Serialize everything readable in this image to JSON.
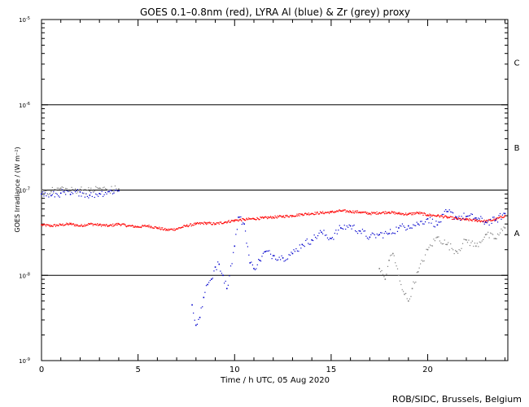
{
  "chart_data": {
    "type": "scatter",
    "title": "GOES 0.1–0.8nm (red), LYRA Al (blue) & Zr (grey) proxy",
    "xlabel": "Time / h UTC, 05 Aug 2020",
    "ylabel": "GOES Irradiance / (W m⁻²)",
    "xlim": [
      0,
      24.15
    ],
    "ylim": [
      1e-09,
      1e-05
    ],
    "yscale": "log",
    "x_ticks": [
      0,
      5,
      10,
      15,
      20
    ],
    "x_tick_labels": [
      "0",
      "5",
      "10",
      "15",
      "20"
    ],
    "y_ticks": [
      {
        "base": "10",
        "exp": "-9"
      },
      {
        "base": "10",
        "exp": "-8"
      },
      {
        "base": "10",
        "exp": "-7"
      },
      {
        "base": "10",
        "exp": "-6"
      },
      {
        "base": "10",
        "exp": "-5"
      }
    ],
    "flare_class_lines": [
      1e-08,
      1e-07,
      1e-06
    ],
    "flare_classes": [
      {
        "label": "A",
        "value": 3.16e-08
      },
      {
        "label": "B",
        "value": 3.16e-07
      },
      {
        "label": "C",
        "value": 3.16e-06
      }
    ],
    "series": [
      {
        "name": "GOES 0.1–0.8nm",
        "color": "#ff0000",
        "x": [
          0,
          0.5,
          1,
          1.5,
          2,
          2.5,
          3,
          3.5,
          4,
          4.5,
          5,
          5.5,
          6,
          6.5,
          7,
          7.5,
          8,
          8.5,
          9,
          9.5,
          10,
          10.5,
          11,
          11.5,
          12,
          12.5,
          13,
          13.5,
          14,
          14.5,
          15,
          15.5,
          16,
          16.5,
          17,
          17.5,
          18,
          18.5,
          19,
          19.5,
          20,
          20.5,
          21,
          21.5,
          22,
          22.5,
          23,
          23.5,
          24
        ],
        "y": [
          3.9e-08,
          3.8e-08,
          3.9e-08,
          4e-08,
          3.8e-08,
          4e-08,
          3.9e-08,
          3.8e-08,
          4e-08,
          3.8e-08,
          3.7e-08,
          3.8e-08,
          3.6e-08,
          3.4e-08,
          3.5e-08,
          3.8e-08,
          4e-08,
          4.1e-08,
          4e-08,
          4.2e-08,
          4.4e-08,
          4.5e-08,
          4.6e-08,
          4.7e-08,
          4.8e-08,
          4.9e-08,
          5e-08,
          5.2e-08,
          5.3e-08,
          5.4e-08,
          5.5e-08,
          5.7e-08,
          5.6e-08,
          5.5e-08,
          5.3e-08,
          5.4e-08,
          5.5e-08,
          5.3e-08,
          5.2e-08,
          5.4e-08,
          5.1e-08,
          5e-08,
          4.8e-08,
          4.6e-08,
          4.5e-08,
          4.4e-08,
          4.3e-08,
          4.5e-08,
          5e-08
        ]
      },
      {
        "name": "LYRA Al proxy",
        "color": "#0000cc",
        "x": [
          0,
          0.5,
          1,
          1.5,
          2,
          2.5,
          3,
          3.5,
          4,
          7.8,
          8.0,
          8.2,
          8.4,
          8.6,
          8.8,
          9.0,
          9.2,
          9.4,
          9.6,
          10.0,
          10.2,
          10.5,
          10.8,
          11.0,
          11.3,
          11.6,
          12.0,
          12.5,
          13.0,
          13.5,
          14.0,
          14.5,
          15.0,
          15.5,
          16.0,
          16.5,
          17.0,
          17.5,
          18.0,
          18.5,
          19.0,
          19.5,
          20.0,
          20.5,
          21.0,
          21.5,
          22.0,
          22.5,
          23.0,
          23.5,
          24.0
        ],
        "y": [
          9e-08,
          8.6e-08,
          9.2e-08,
          8.9e-08,
          9.5e-08,
          8.7e-08,
          9.1e-08,
          9.6e-08,
          9.8e-08,
          4.5e-09,
          2.6e-09,
          3.2e-09,
          5.5e-09,
          7.8e-09,
          9e-09,
          1.25e-08,
          1.35e-08,
          1e-08,
          7e-09,
          2.2e-08,
          4.8e-08,
          4e-08,
          1.4e-08,
          1.2e-08,
          1.5e-08,
          1.9e-08,
          1.7e-08,
          1.6e-08,
          1.8e-08,
          2.3e-08,
          2.6e-08,
          3.2e-08,
          2.7e-08,
          3.6e-08,
          3.8e-08,
          3.3e-08,
          2.8e-08,
          3e-08,
          3.1e-08,
          3.6e-08,
          3.8e-08,
          4e-08,
          4.6e-08,
          3.9e-08,
          5.6e-08,
          4.8e-08,
          4.9e-08,
          4.7e-08,
          4.2e-08,
          4.4e-08,
          5.3e-08
        ]
      },
      {
        "name": "LYRA Zr proxy",
        "color": "#808080",
        "x": [
          0,
          0.5,
          1,
          1.5,
          2,
          2.5,
          3,
          3.5,
          4,
          17.5,
          17.8,
          18.0,
          18.2,
          18.5,
          18.8,
          19.0,
          19.2,
          19.5,
          20.0,
          20.5,
          21.0,
          21.5,
          22.0,
          22.5,
          23.0,
          23.5,
          24.0
        ],
        "y": [
          1e-07,
          9.6e-08,
          1.05e-07,
          9.8e-08,
          1.02e-07,
          9.7e-08,
          1.05e-07,
          1e-07,
          1.03e-07,
          1.2e-08,
          9e-09,
          1.5e-08,
          1.8e-08,
          1e-08,
          6e-09,
          5e-09,
          7e-09,
          1.1e-08,
          2e-08,
          2.8e-08,
          2.3e-08,
          1.9e-08,
          2.6e-08,
          2.2e-08,
          3e-08,
          2.7e-08,
          3.6e-08
        ]
      }
    ]
  },
  "credit": "ROB/SIDC, Brussels, Belgium"
}
